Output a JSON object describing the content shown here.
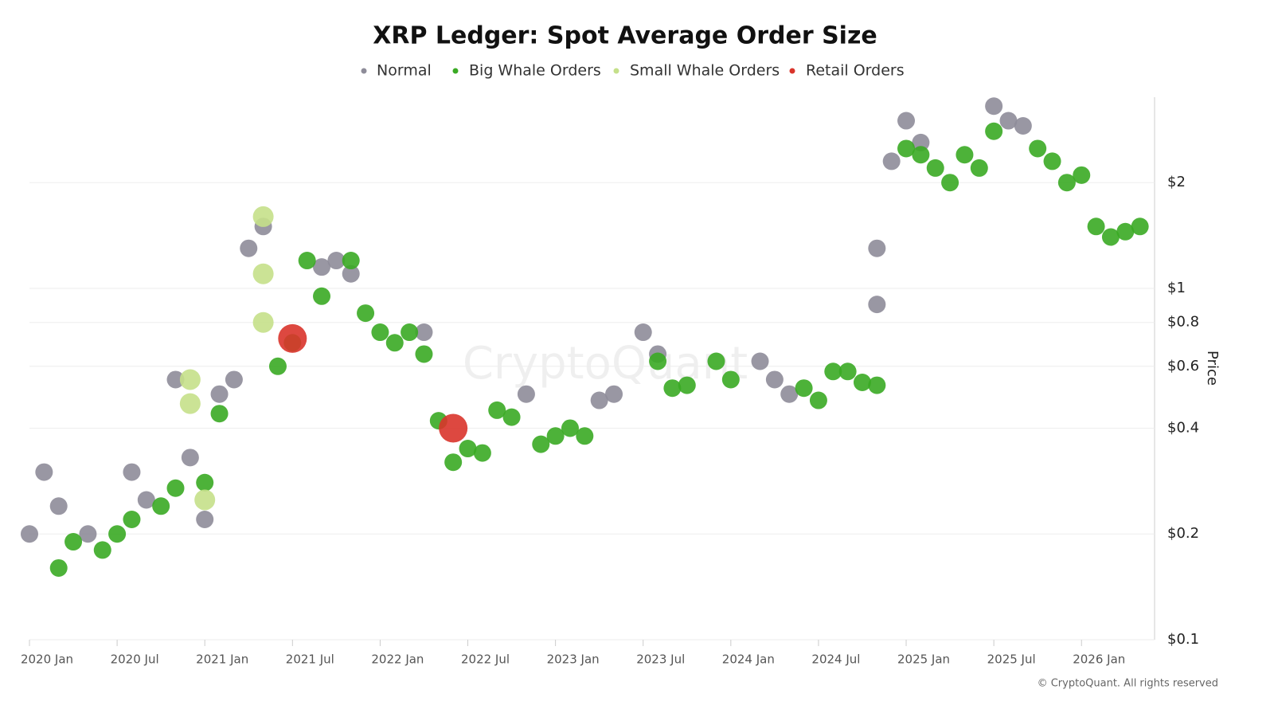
{
  "chart_data": {
    "type": "scatter",
    "title": "XRP Ledger: Spot Average Order Size",
    "y_label": "Price",
    "watermark": "CryptoQuant",
    "source": "© CryptoQuant. All rights reserved",
    "y_scale": "log",
    "grid": true,
    "legend": "top",
    "xlim": [
      "2020-01",
      "2026-06"
    ],
    "xticks": [
      {
        "value": "2020-01",
        "label": "2020 Jan"
      },
      {
        "value": "2020-07",
        "label": "2020 Jul"
      },
      {
        "value": "2021-01",
        "label": "2021 Jan"
      },
      {
        "value": "2021-07",
        "label": "2021 Jul"
      },
      {
        "value": "2022-01",
        "label": "2022 Jan"
      },
      {
        "value": "2022-07",
        "label": "2022 Jul"
      },
      {
        "value": "2023-01",
        "label": "2023 Jan"
      },
      {
        "value": "2023-07",
        "label": "2023 Jul"
      },
      {
        "value": "2024-01",
        "label": "2024 Jan"
      },
      {
        "value": "2024-07",
        "label": "2024 Jul"
      },
      {
        "value": "2025-01",
        "label": "2025 Jan"
      },
      {
        "value": "2025-07",
        "label": "2025 Jul"
      },
      {
        "value": "2026-01",
        "label": "2026 Jan"
      }
    ],
    "ylim": [
      0.1,
      3.5
    ],
    "yticks": [
      {
        "value": 0.1,
        "label": "$0.1"
      },
      {
        "value": 0.2,
        "label": "$0.2"
      },
      {
        "value": 0.4,
        "label": "$0.4"
      },
      {
        "value": 0.6,
        "label": "$0.6"
      },
      {
        "value": 0.8,
        "label": "$0.8"
      },
      {
        "value": 1,
        "label": "$1"
      },
      {
        "value": 2,
        "label": "$2"
      }
    ],
    "series": [
      {
        "name": "Normal",
        "color": "#8e8c99",
        "x": [
          "2020-01",
          "2020-02",
          "2020-03",
          "2020-05",
          "2020-08",
          "2020-09",
          "2020-11",
          "2020-12",
          "2021-01",
          "2021-02",
          "2021-03",
          "2021-04",
          "2021-05",
          "2021-09",
          "2021-10",
          "2021-11",
          "2022-04",
          "2022-11",
          "2023-04",
          "2023-05",
          "2023-07",
          "2023-08",
          "2024-03",
          "2024-04",
          "2024-05",
          "2024-11",
          "2024-11",
          "2024-12",
          "2025-01",
          "2025-02",
          "2025-07",
          "2025-08",
          "2025-09"
        ],
        "values": [
          0.2,
          0.3,
          0.24,
          0.2,
          0.3,
          0.25,
          0.55,
          0.33,
          0.22,
          0.5,
          0.55,
          1.3,
          1.5,
          1.15,
          1.2,
          1.1,
          0.75,
          0.5,
          0.48,
          0.5,
          0.75,
          0.65,
          0.62,
          0.55,
          0.5,
          0.9,
          1.3,
          2.3,
          3.0,
          2.6,
          3.3,
          3.0,
          2.9
        ]
      },
      {
        "name": "Big Whale Orders",
        "color": "#3aaa24",
        "x": [
          "2020-03",
          "2020-04",
          "2020-06",
          "2020-07",
          "2020-08",
          "2020-10",
          "2020-11",
          "2021-01",
          "2021-02",
          "2021-06",
          "2021-07",
          "2021-08",
          "2021-09",
          "2021-11",
          "2021-12",
          "2022-01",
          "2022-02",
          "2022-03",
          "2022-04",
          "2022-05",
          "2022-06",
          "2022-07",
          "2022-08",
          "2022-09",
          "2022-10",
          "2022-12",
          "2023-01",
          "2023-02",
          "2023-03",
          "2023-08",
          "2023-09",
          "2023-10",
          "2023-12",
          "2024-01",
          "2024-06",
          "2024-07",
          "2024-08",
          "2024-09",
          "2024-10",
          "2024-11",
          "2025-01",
          "2025-02",
          "2025-03",
          "2025-04",
          "2025-05",
          "2025-06",
          "2025-07",
          "2025-10",
          "2025-11",
          "2025-12",
          "2026-01",
          "2026-02",
          "2026-03",
          "2026-04",
          "2026-05"
        ],
        "values": [
          0.16,
          0.19,
          0.18,
          0.2,
          0.22,
          0.24,
          0.27,
          0.28,
          0.44,
          0.6,
          0.7,
          1.2,
          0.95,
          1.2,
          0.85,
          0.75,
          0.7,
          0.75,
          0.65,
          0.42,
          0.32,
          0.35,
          0.34,
          0.45,
          0.43,
          0.36,
          0.38,
          0.4,
          0.38,
          0.62,
          0.52,
          0.53,
          0.62,
          0.55,
          0.52,
          0.48,
          0.58,
          0.58,
          0.54,
          0.53,
          2.5,
          2.4,
          2.2,
          2.0,
          2.4,
          2.2,
          2.8,
          2.5,
          2.3,
          2.0,
          2.1,
          1.5,
          1.4,
          1.45,
          1.5
        ]
      },
      {
        "name": "Small Whale Orders",
        "color": "#c5e08a",
        "x": [
          "2020-12",
          "2020-12",
          "2021-01",
          "2021-05",
          "2021-05",
          "2021-05"
        ],
        "values": [
          0.55,
          0.47,
          0.25,
          1.6,
          1.1,
          0.8
        ]
      },
      {
        "name": "Retail Orders",
        "color": "#d9342b",
        "x": [
          "2021-07",
          "2022-06"
        ],
        "values": [
          0.72,
          0.4
        ]
      }
    ]
  }
}
